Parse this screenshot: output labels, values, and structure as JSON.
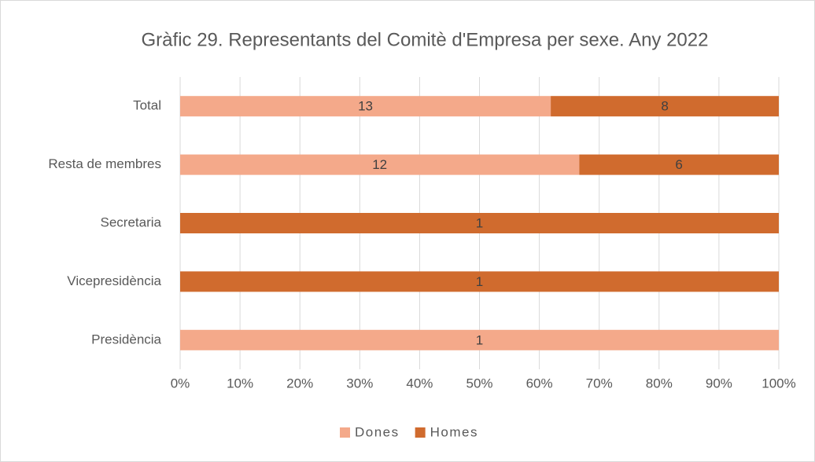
{
  "chart_data": {
    "type": "bar",
    "orientation": "horizontal",
    "stacking": "percent",
    "title": "Gràfic 29. Representants del Comitè d'Empresa per sexe. Any 2022",
    "categories": [
      "Total",
      "Resta de membres",
      "Secretaria",
      "Vicepresidència",
      "Presidència"
    ],
    "series": [
      {
        "name": "Dones",
        "color": "#f4a98a",
        "values": [
          13,
          12,
          0,
          0,
          1
        ]
      },
      {
        "name": "Homes",
        "color": "#d06b2e",
        "values": [
          8,
          6,
          1,
          1,
          0
        ]
      }
    ],
    "xlim": [
      0,
      100
    ],
    "xticks": [
      {
        "value": 0,
        "label": "0%"
      },
      {
        "value": 10,
        "label": "10%"
      },
      {
        "value": 20,
        "label": "20%"
      },
      {
        "value": 30,
        "label": "30%"
      },
      {
        "value": 40,
        "label": "40%"
      },
      {
        "value": 50,
        "label": "50%"
      },
      {
        "value": 60,
        "label": "60%"
      },
      {
        "value": 70,
        "label": "70%"
      },
      {
        "value": 80,
        "label": "80%"
      },
      {
        "value": 90,
        "label": "90%"
      },
      {
        "value": 100,
        "label": "100%"
      }
    ],
    "grid": true,
    "legend": "bottom"
  }
}
